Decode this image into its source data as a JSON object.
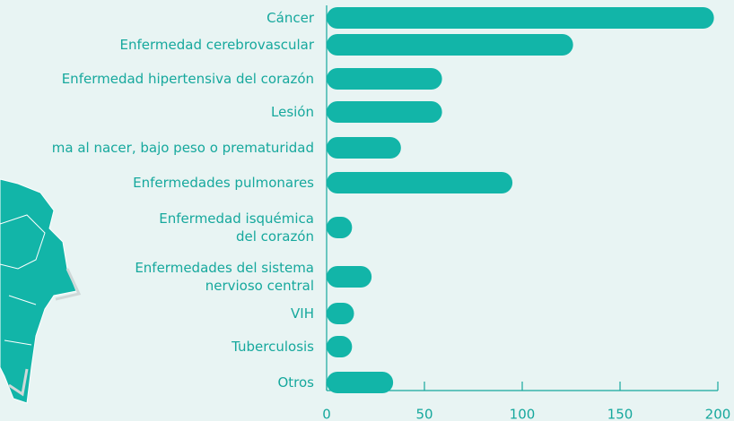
{
  "chart_data": {
    "type": "bar",
    "orientation": "horizontal",
    "color": "#12b5a8",
    "categories": [
      [
        "Cáncer"
      ],
      [
        "Enfermedad cerebrovascular"
      ],
      [
        "Enfermedad hipertensiva del corazón"
      ],
      [
        "Lesión"
      ],
      [
        "ma al nacer, bajo peso o prematuridad"
      ],
      [
        "Enfermedades pulmonares"
      ],
      [
        "Enfermedad isquémica",
        "del corazón"
      ],
      [
        "Enfermedades del sistema",
        "nervioso central"
      ],
      [
        "VIH"
      ],
      [
        "Tuberculosis"
      ],
      [
        "Otros"
      ]
    ],
    "values": [
      198,
      126,
      59,
      59,
      38,
      95,
      13,
      23,
      14,
      13,
      34
    ],
    "xlim": [
      0,
      200
    ],
    "xticks": [
      0,
      50,
      100,
      150,
      200
    ]
  }
}
